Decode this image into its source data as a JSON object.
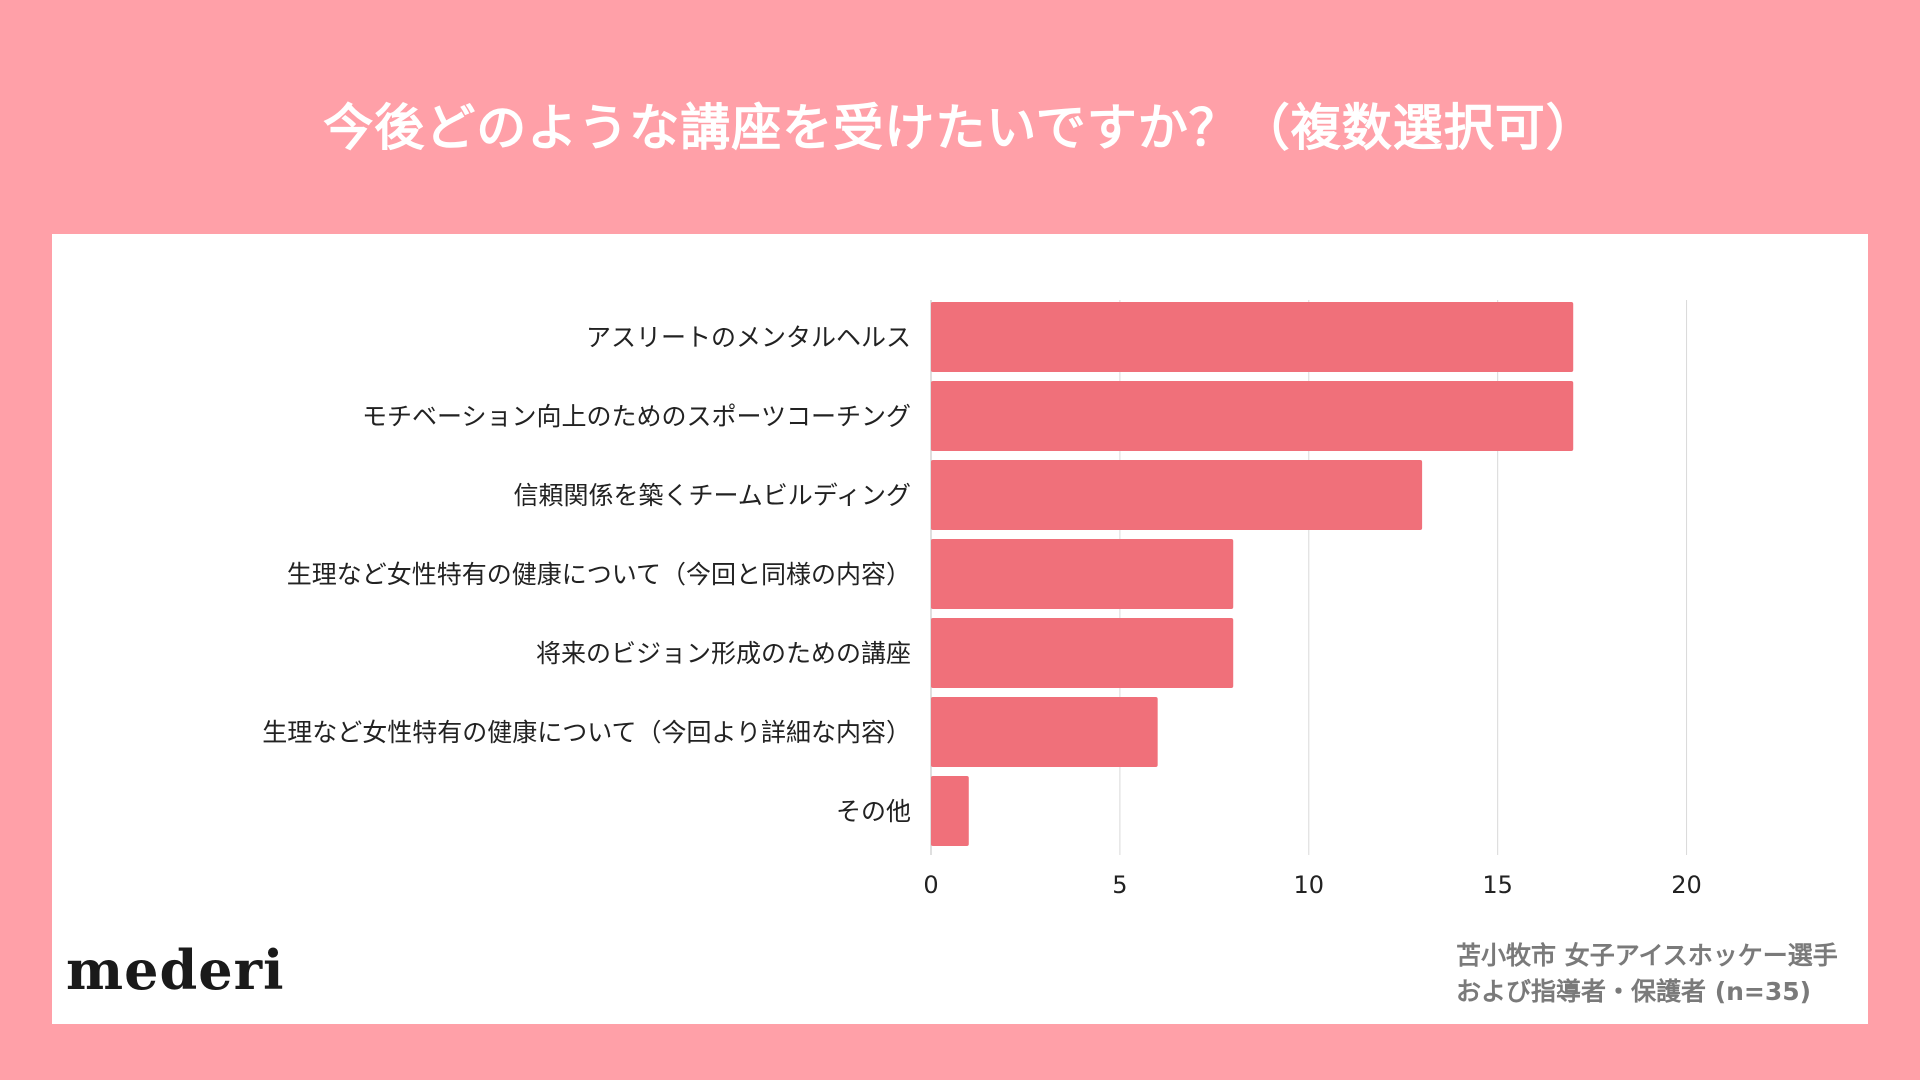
{
  "title": "今後どのような講座を受けたいですか？（複数選択可）",
  "chart_data": {
    "type": "bar",
    "orientation": "horizontal",
    "title": "今後どのような講座を受けたいですか？（複数選択可）",
    "categories": [
      "アスリートのメンタルヘルス",
      "モチベーション向上のためのスポーツコーチング",
      "信頼関係を築くチームビルディング",
      "生理など女性特有の健康について（今回と同様の内容）",
      "将来のビジョン形成のための講座",
      "生理など女性特有の健康について（今回より詳細な内容）",
      "その他"
    ],
    "values": [
      17,
      17,
      13,
      8,
      8,
      6,
      1
    ],
    "xlim": [
      0,
      22.5
    ],
    "xticks": [
      0,
      5,
      10,
      15,
      20
    ],
    "xlabel": "",
    "ylabel": "",
    "grid": true,
    "bar_color": "#f0707a"
  },
  "logo": "mederi",
  "source": {
    "line1": "苫小牧市 女子アイスホッケー選手",
    "line2": "および指導者・保護者 (n=35)"
  },
  "colors": {
    "background": "#ffa0a8",
    "panel": "#ffffff",
    "bar": "#f0707a",
    "grid": "#d9d9d9"
  }
}
